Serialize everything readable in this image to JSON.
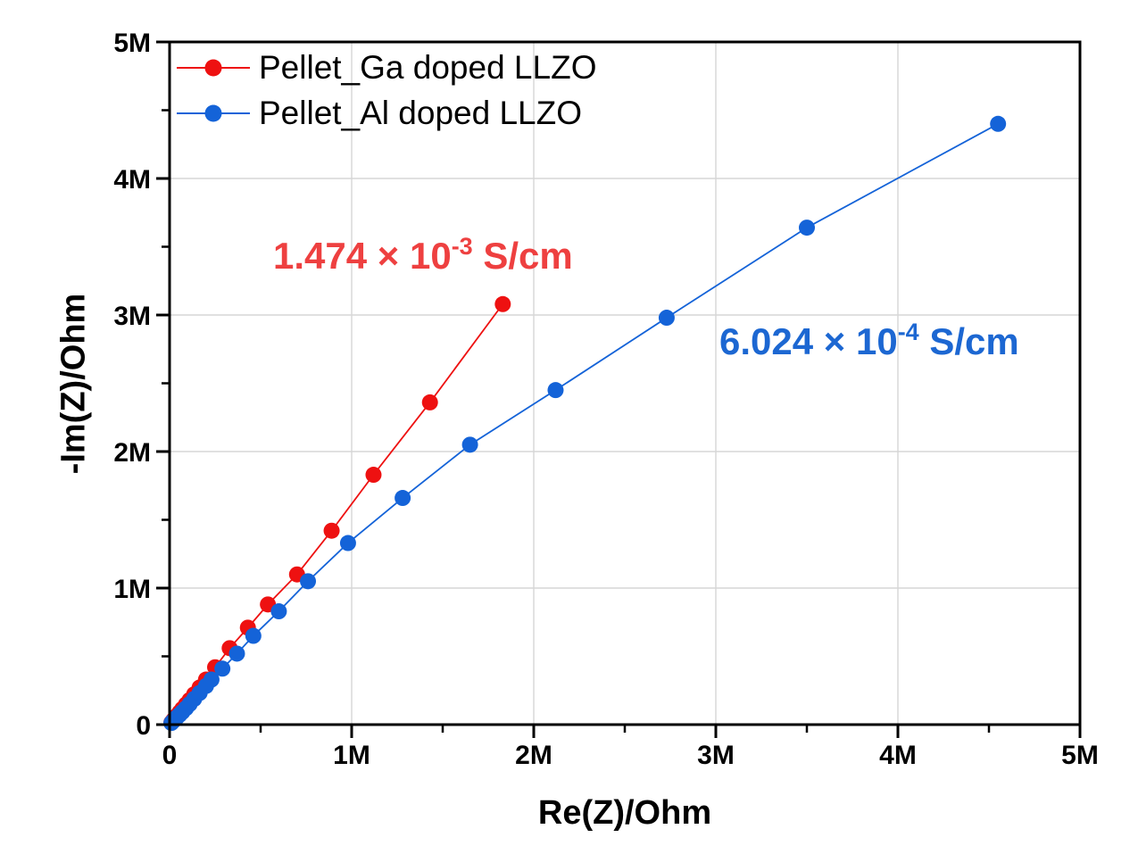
{
  "figure": {
    "background": "#ffffff",
    "text_color": "#000000"
  },
  "chart_data": {
    "type": "scatter",
    "subtype": "nyquist-impedance-plot-with-lines",
    "title": "",
    "xlabel": "Re(Z)/Ohm",
    "ylabel": "-Im(Z)/Ohm",
    "xlim": [
      0,
      5000000
    ],
    "ylim": [
      0,
      5000000
    ],
    "grid": {
      "show": "major",
      "color": "#d6d6d6"
    },
    "frame": {
      "color": "#000000",
      "width": 3
    },
    "xaxis": {
      "ticks": [
        {
          "value": 0,
          "label": "0"
        },
        {
          "value": 1000000,
          "label": "1M"
        },
        {
          "value": 2000000,
          "label": "2M"
        },
        {
          "value": 3000000,
          "label": "3M"
        },
        {
          "value": 4000000,
          "label": "4M"
        },
        {
          "value": 5000000,
          "label": "5M"
        }
      ],
      "minor_tick_interval": 500000
    },
    "yaxis": {
      "ticks": [
        {
          "value": 0,
          "label": "0"
        },
        {
          "value": 1000000,
          "label": "1M"
        },
        {
          "value": 2000000,
          "label": "2M"
        },
        {
          "value": 3000000,
          "label": "3M"
        },
        {
          "value": 4000000,
          "label": "4M"
        },
        {
          "value": 5000000,
          "label": "5M"
        }
      ],
      "minor_tick_interval": 500000
    },
    "legend_position": "top-left-inside",
    "series": [
      {
        "name": "Pellet_Ga doped LLZO",
        "color": "#ee1111",
        "marker": "circle",
        "marker_radius": 9,
        "points": [
          [
            10000,
            15000
          ],
          [
            20000,
            32000
          ],
          [
            30000,
            48000
          ],
          [
            40000,
            65000
          ],
          [
            55000,
            90000
          ],
          [
            70000,
            115000
          ],
          [
            90000,
            148000
          ],
          [
            110000,
            180000
          ],
          [
            135000,
            222000
          ],
          [
            165000,
            272000
          ],
          [
            200000,
            330000
          ],
          [
            250000,
            420000
          ],
          [
            330000,
            560000
          ],
          [
            430000,
            710000
          ],
          [
            540000,
            880000
          ],
          [
            700000,
            1100000
          ],
          [
            890000,
            1420000
          ],
          [
            1120000,
            1830000
          ],
          [
            1430000,
            2360000
          ],
          [
            1830000,
            3080000
          ]
        ]
      },
      {
        "name": "Pellet_Al doped LLZO",
        "color": "#1463d8",
        "marker": "circle",
        "marker_radius": 9,
        "points": [
          [
            10000,
            12000
          ],
          [
            20000,
            26000
          ],
          [
            30000,
            40000
          ],
          [
            40000,
            53000
          ],
          [
            55000,
            72000
          ],
          [
            70000,
            92000
          ],
          [
            90000,
            120000
          ],
          [
            110000,
            150000
          ],
          [
            135000,
            188000
          ],
          [
            165000,
            232000
          ],
          [
            200000,
            283000
          ],
          [
            230000,
            330000
          ],
          [
            290000,
            410000
          ],
          [
            370000,
            520000
          ],
          [
            460000,
            650000
          ],
          [
            600000,
            830000
          ],
          [
            760000,
            1050000
          ],
          [
            980000,
            1330000
          ],
          [
            1280000,
            1660000
          ],
          [
            1650000,
            2050000
          ],
          [
            2120000,
            2450000
          ],
          [
            2730000,
            2980000
          ],
          [
            3500000,
            3640000
          ],
          [
            4550000,
            4400000
          ]
        ]
      }
    ],
    "annotations": [
      {
        "display_text": "1.474 × 10⁻³ S/cm",
        "prefix": "1.474 × 10",
        "exponent": "-3",
        "suffix": " S/cm",
        "color": "#ee4040"
      },
      {
        "display_text": "6.024 × 10⁻⁴ S/cm",
        "prefix": "6.024 × 10",
        "exponent": "-4",
        "suffix": " S/cm",
        "color": "#1c67d2"
      }
    ]
  }
}
